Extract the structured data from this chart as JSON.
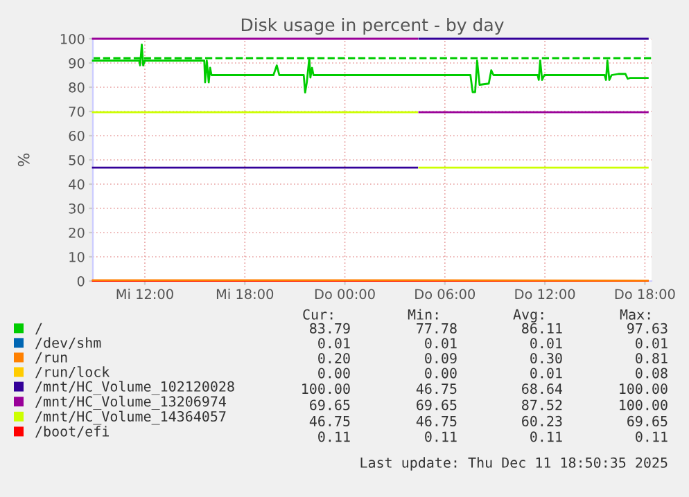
{
  "chart_data": {
    "type": "line",
    "title": "Disk usage in percent - by day",
    "ylabel": "%",
    "xlim": [
      "2025-12-10T08:53",
      "2025-12-11T18:24"
    ],
    "ylim": [
      0,
      100
    ],
    "xticks": [
      {
        "value": "2025-12-10T12:00",
        "label": "Mi 12:00"
      },
      {
        "value": "2025-12-10T18:00",
        "label": "Mi 18:00"
      },
      {
        "value": "2025-12-11T00:00",
        "label": "Do 00:00"
      },
      {
        "value": "2025-12-11T06:00",
        "label": "Do 06:00"
      },
      {
        "value": "2025-12-11T12:00",
        "label": "Do 12:00"
      },
      {
        "value": "2025-12-11T18:00",
        "label": "Do 18:00"
      }
    ],
    "yticks": [
      0,
      10,
      20,
      30,
      40,
      50,
      60,
      70,
      80,
      90,
      100
    ],
    "grid": true,
    "legend": "bottom",
    "marker": "none",
    "line_style": "solid",
    "series": [
      {
        "name": "/",
        "color": "#00cc00",
        "x": [
          "2025-12-10T08:53",
          "2025-12-10T11:40",
          "2025-12-10T11:43",
          "2025-12-10T11:49",
          "2025-12-10T11:54",
          "2025-12-10T12:00",
          "2025-12-10T15:34",
          "2025-12-10T15:37",
          "2025-12-10T15:43",
          "2025-12-10T15:50",
          "2025-12-10T15:55",
          "2025-12-10T16:00",
          "2025-12-10T19:43",
          "2025-12-10T19:55",
          "2025-12-10T20:04",
          "2025-12-10T21:32",
          "2025-12-10T21:37",
          "2025-12-10T21:43",
          "2025-12-10T21:52",
          "2025-12-10T21:56",
          "2025-12-10T22:02",
          "2025-12-10T22:07",
          "2025-12-11T07:32",
          "2025-12-11T07:40",
          "2025-12-11T07:49",
          "2025-12-11T07:56",
          "2025-12-11T08:05",
          "2025-12-11T08:38",
          "2025-12-11T08:47",
          "2025-12-11T08:55",
          "2025-12-11T11:34",
          "2025-12-11T11:38",
          "2025-12-11T11:43",
          "2025-12-11T11:50",
          "2025-12-11T11:58",
          "2025-12-11T15:35",
          "2025-12-11T15:40",
          "2025-12-11T15:45",
          "2025-12-11T15:52",
          "2025-12-11T16:00",
          "2025-12-11T16:25",
          "2025-12-11T16:50",
          "2025-12-11T16:58",
          "2025-12-11T17:07",
          "2025-12-11T18:10"
        ],
        "values": [
          91,
          91,
          89,
          97.6,
          89,
          91,
          91,
          82,
          91,
          82,
          88,
          85,
          85,
          89,
          85,
          85,
          77.8,
          82,
          92,
          84,
          88,
          85,
          85,
          78,
          78,
          91,
          81,
          81.5,
          87,
          85,
          85,
          83,
          91,
          83,
          85,
          85,
          83,
          91,
          83,
          85,
          85.5,
          85.5,
          83.5,
          83.8,
          83.8
        ]
      },
      {
        "name": "/dev/shm",
        "color": "#0066b3"
      },
      {
        "name": "/run",
        "color": "#ff8000",
        "x": [
          "2025-12-10T08:53",
          "2025-12-11T04:20",
          "2025-12-11T18:10"
        ],
        "values": [
          0.3,
          0.3,
          0.2
        ]
      },
      {
        "name": "/run/lock",
        "color": "#ffcc00"
      },
      {
        "name": "/mnt/HC_Volume_102120028",
        "color": "#330099",
        "x": [
          "2025-12-10T08:53",
          "2025-12-11T04:20",
          "2025-12-11T04:24",
          "2025-12-11T04:28",
          "2025-12-11T18:10"
        ],
        "values": [
          46.8,
          46.8,
          null,
          100,
          100
        ]
      },
      {
        "name": "/mnt/HC_Volume_13206974",
        "color": "#990099",
        "x": [
          "2025-12-10T08:53",
          "2025-12-11T04:20",
          "2025-12-11T04:24",
          "2025-12-11T04:28",
          "2025-12-11T18:10"
        ],
        "values": [
          100,
          100,
          null,
          69.7,
          69.7
        ]
      },
      {
        "name": "/mnt/HC_Volume_14364057",
        "color": "#ccff00",
        "x": [
          "2025-12-10T08:53",
          "2025-12-11T04:20",
          "2025-12-11T04:24",
          "2025-12-11T04:28",
          "2025-12-11T18:10"
        ],
        "values": [
          69.7,
          69.7,
          null,
          46.8,
          46.8
        ]
      },
      {
        "name": "/boot/efi",
        "color": "#ff0000",
        "x": [
          "2025-12-10T08:53",
          "2025-12-11T18:10"
        ],
        "values": [
          0.1,
          0.1
        ]
      }
    ],
    "ref_lines": [
      {
        "axis": "y",
        "value": 92,
        "color": "#00cc00",
        "line_style": "dashed"
      }
    ],
    "annotations": [
      "Cur:",
      "Min:",
      "Avg:",
      "Max:",
      "83.79",
      "77.78",
      "86.11",
      "97.63",
      "0.01",
      "0.01",
      "0.01",
      "0.01",
      "0.20",
      "0.09",
      "0.30",
      "0.81",
      "0.00",
      "0.00",
      "0.01",
      "0.08",
      "100.00",
      "46.75",
      "68.64",
      "100.00",
      "69.65",
      "69.65",
      "87.52",
      "100.00",
      "46.75",
      "46.75",
      "60.23",
      "69.65",
      "0.11",
      "0.11",
      "0.11",
      "0.11",
      "Last update: Thu Dec 11 18:50:35 2025"
    ]
  }
}
